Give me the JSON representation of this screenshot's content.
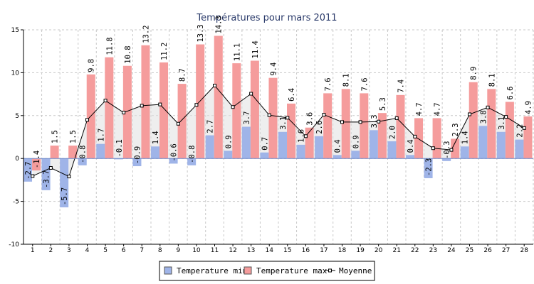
{
  "chart_data": {
    "type": "bar",
    "title": "Températures pour mars 2011",
    "categories": [
      "1",
      "2",
      "3",
      "4",
      "5",
      "6",
      "7",
      "8",
      "9",
      "10",
      "11",
      "12",
      "13",
      "14",
      "15",
      "16",
      "17",
      "18",
      "19",
      "20",
      "21",
      "22",
      "23",
      "24",
      "25",
      "26",
      "27",
      "28"
    ],
    "series": [
      {
        "name": "Temperature min",
        "kind": "bar",
        "color": "#9fb4e8",
        "values": [
          -2.7,
          -3.7,
          -5.7,
          -0.8,
          1.7,
          -0.1,
          -0.9,
          1.4,
          -0.6,
          -0.8,
          2.7,
          0.9,
          3.7,
          0.7,
          3.1,
          1.6,
          2.6,
          0.4,
          0.9,
          3.3,
          2.0,
          0.4,
          -2.3,
          -0.3,
          1.4,
          3.8,
          3.1,
          2.2
        ]
      },
      {
        "name": "Temperature max",
        "kind": "bar",
        "color": "#f59c9c",
        "values": [
          -1.4,
          1.5,
          1.5,
          9.8,
          11.8,
          10.8,
          13.2,
          11.2,
          8.7,
          13.3,
          14.3,
          11.1,
          11.4,
          9.4,
          6.4,
          3.6,
          7.6,
          8.1,
          7.6,
          5.3,
          7.4,
          4.7,
          4.7,
          2.3,
          8.9,
          8.1,
          6.6,
          4.9
        ]
      },
      {
        "name": "Moyenne",
        "kind": "line",
        "color": "#000000",
        "values": [
          -2.05,
          -1.1,
          -2.1,
          4.5,
          6.75,
          5.35,
          6.15,
          6.3,
          4.05,
          6.25,
          8.5,
          6.0,
          7.55,
          5.05,
          4.75,
          2.6,
          5.1,
          4.25,
          4.25,
          4.3,
          4.7,
          2.55,
          1.2,
          1.0,
          5.15,
          5.95,
          4.85,
          3.55
        ]
      }
    ],
    "ylim": [
      -10,
      15
    ],
    "yticks": [
      -10,
      -5,
      0,
      5,
      10,
      15
    ],
    "grid": true,
    "legend_position": "bottom"
  }
}
